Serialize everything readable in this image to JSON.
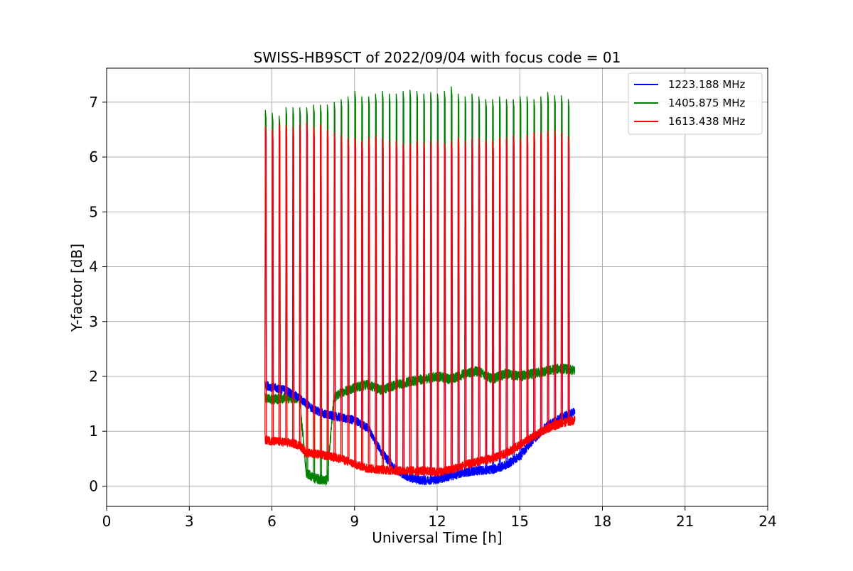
{
  "chart_data": {
    "type": "line",
    "title": "SWISS-HB9SCT of 2022/09/04 with focus code = 01",
    "xlabel": "Universal Time [h]",
    "ylabel": "Y-factor [dB]",
    "xlim": [
      0,
      24
    ],
    "ylim": [
      -0.37,
      7.62
    ],
    "xticks": [
      0,
      3,
      6,
      9,
      12,
      15,
      18,
      21,
      24
    ],
    "yticks": [
      0,
      1,
      2,
      3,
      4,
      5,
      6,
      7
    ],
    "grid": true,
    "legend_position": "top-right",
    "calibration_peak_times": [
      5.75,
      6.0,
      6.25,
      6.5,
      6.75,
      7.0,
      7.25,
      7.5,
      7.75,
      8.0,
      8.25,
      8.5,
      8.75,
      9.0,
      9.25,
      9.5,
      9.75,
      10.0,
      10.25,
      10.5,
      10.75,
      11.0,
      11.25,
      11.5,
      11.75,
      12.0,
      12.25,
      12.5,
      12.75,
      13.0,
      13.25,
      13.5,
      13.75,
      14.0,
      14.25,
      14.5,
      14.75,
      15.0,
      15.25,
      15.5,
      15.75,
      16.0,
      16.25,
      16.5,
      16.75
    ],
    "series": [
      {
        "name": "1223.188 MHz",
        "color": "#0000ff",
        "baseline": {
          "x": [
            5.75,
            6.0,
            6.5,
            7.0,
            7.5,
            8.0,
            8.5,
            9.0,
            9.5,
            10.0,
            10.5,
            11.0,
            11.5,
            12.0,
            12.5,
            13.0,
            13.5,
            14.0,
            14.5,
            15.0,
            15.5,
            16.0,
            16.5,
            17.0
          ],
          "y": [
            1.85,
            1.8,
            1.75,
            1.6,
            1.4,
            1.3,
            1.25,
            1.2,
            1.05,
            0.6,
            0.3,
            0.15,
            0.1,
            0.12,
            0.18,
            0.25,
            0.28,
            0.3,
            0.38,
            0.55,
            0.85,
            1.1,
            1.25,
            1.35
          ]
        },
        "peaks": []
      },
      {
        "name": "1405.875 MHz",
        "color": "#008000",
        "baseline": {
          "x": [
            5.75,
            6.0,
            6.5,
            7.0,
            7.25,
            7.5,
            8.0,
            8.25,
            8.5,
            9.0,
            9.5,
            10.0,
            10.5,
            11.0,
            11.5,
            12.0,
            12.5,
            13.0,
            13.5,
            14.0,
            14.5,
            15.0,
            15.5,
            16.0,
            16.5,
            17.0
          ],
          "y": [
            1.6,
            1.58,
            1.6,
            1.6,
            0.25,
            0.15,
            0.1,
            1.6,
            1.7,
            1.8,
            1.85,
            1.75,
            1.85,
            1.9,
            1.95,
            2.0,
            1.95,
            2.05,
            2.1,
            1.95,
            2.05,
            2.0,
            2.05,
            2.1,
            2.15,
            2.1
          ]
        },
        "peaks": [
          6.85,
          6.8,
          6.75,
          6.9,
          6.9,
          6.9,
          6.9,
          6.95,
          6.95,
          6.95,
          7.0,
          7.05,
          7.1,
          7.2,
          7.1,
          7.1,
          7.15,
          7.2,
          7.15,
          7.15,
          7.2,
          7.22,
          7.2,
          7.15,
          7.18,
          7.15,
          7.2,
          7.28,
          7.15,
          7.1,
          7.15,
          7.1,
          7.05,
          7.05,
          7.1,
          7.05,
          7.05,
          7.1,
          7.1,
          7.05,
          7.1,
          7.18,
          7.12,
          7.12,
          7.05
        ]
      },
      {
        "name": "1613.438 MHz",
        "color": "#ff0000",
        "baseline": {
          "x": [
            5.75,
            6.0,
            6.5,
            7.0,
            7.25,
            7.5,
            8.0,
            8.5,
            9.0,
            9.5,
            10.0,
            10.5,
            11.0,
            11.5,
            12.0,
            12.5,
            13.0,
            13.5,
            14.0,
            14.5,
            15.0,
            15.5,
            16.0,
            16.5,
            17.0
          ],
          "y": [
            0.85,
            0.82,
            0.8,
            0.75,
            0.6,
            0.6,
            0.55,
            0.5,
            0.4,
            0.32,
            0.3,
            0.28,
            0.28,
            0.28,
            0.25,
            0.3,
            0.38,
            0.45,
            0.5,
            0.6,
            0.75,
            0.9,
            1.05,
            1.15,
            1.2
          ]
        },
        "peaks": [
          6.55,
          6.5,
          6.6,
          6.58,
          6.55,
          6.6,
          6.62,
          6.55,
          6.6,
          6.5,
          6.45,
          6.4,
          6.35,
          6.35,
          6.3,
          6.35,
          6.4,
          6.35,
          6.3,
          6.3,
          6.25,
          6.25,
          6.3,
          6.28,
          6.3,
          6.3,
          6.25,
          6.3,
          6.35,
          6.3,
          6.35,
          6.35,
          6.3,
          6.3,
          6.35,
          6.35,
          6.4,
          6.35,
          6.4,
          6.45,
          6.45,
          6.48,
          6.5,
          6.45,
          6.38
        ]
      }
    ]
  }
}
